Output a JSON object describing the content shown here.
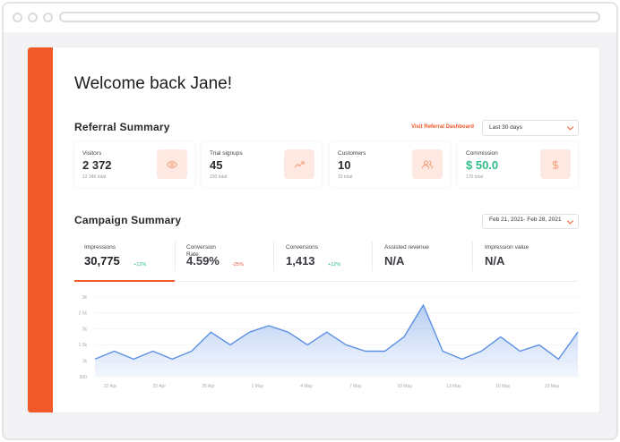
{
  "header": {
    "welcome": "Welcome back Jane!"
  },
  "referral": {
    "title": "Referral Summary",
    "link": "Visit Referral Dashboard",
    "range": "Last 30 days",
    "cards": [
      {
        "label": "Visitors",
        "value": "2 372",
        "sub": "12 346 total",
        "icon": "eye-icon"
      },
      {
        "label": "Trial signups",
        "value": "45",
        "sub": "230 total",
        "icon": "trend-up-icon"
      },
      {
        "label": "Customers",
        "value": "10",
        "sub": "19 total",
        "icon": "users-icon"
      },
      {
        "label": "Commission",
        "value": "$ 50.0",
        "sub": "170 total",
        "icon": "dollar-icon"
      }
    ]
  },
  "campaign": {
    "title": "Campaign Summary",
    "date_range": "Feb 21, 2021- Feb 28, 2021",
    "metrics": [
      {
        "label": "Impressions",
        "value": "30,775",
        "delta": "+12%"
      },
      {
        "label": "Conversion Rate",
        "value": "4.59%",
        "delta": "-25%"
      },
      {
        "label": "Conversions",
        "value": "1,413",
        "delta": "+12%"
      },
      {
        "label": "Assisted revenue",
        "value": "N/A",
        "delta": ""
      },
      {
        "label": "Impression value",
        "value": "N/A",
        "delta": ""
      }
    ]
  },
  "colors": {
    "accent": "#f05a28",
    "positive": "#2ebd85",
    "negative": "#e8553b",
    "line": "#5b8fe3",
    "area": "#dbe6fb"
  },
  "chart_data": {
    "type": "area",
    "x_ticks": [
      "22 Apr",
      "25 Apr",
      "28 Apr",
      "1 May",
      "4 May",
      "7 May",
      "10 May",
      "13 May",
      "16 May",
      "19 May"
    ],
    "y_ticks": [
      "500",
      "1k",
      "1.5k",
      "2k",
      "2.5k",
      "3k"
    ],
    "ylim": [
      500,
      3000
    ],
    "series": [
      {
        "values": [
          1050,
          1300,
          1050,
          1300,
          1050,
          1300,
          1900,
          1500,
          1900,
          2100,
          1900,
          1500,
          1900,
          1500,
          1300,
          1300,
          1750,
          2750,
          1300,
          1050,
          1300,
          1750,
          1300,
          1500,
          1050,
          1900
        ]
      }
    ]
  }
}
